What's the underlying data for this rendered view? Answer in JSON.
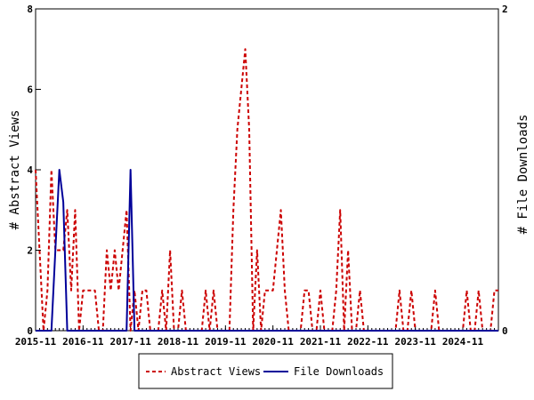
{
  "chart_data": {
    "type": "line",
    "ylabel_left": "# Abstract Views",
    "ylabel_right": "# File Downloads",
    "x_tick_labels": [
      "2015-11",
      "2016-11",
      "2017-11",
      "2018-11",
      "2019-11",
      "2020-11",
      "2021-11",
      "2022-11",
      "2023-11",
      "2024-11"
    ],
    "y_left_ticks": [
      "0",
      "2",
      "4",
      "6",
      "8"
    ],
    "y_right_ticks": [
      "0",
      "2"
    ],
    "ylim_left": [
      0,
      8
    ],
    "ylim_right": [
      0,
      2
    ],
    "x_start": "2015-11",
    "x_end": "2025-08",
    "grid": false,
    "legend_position": "bottom-center",
    "series": [
      {
        "name": "Abstract Views",
        "axis": "left",
        "color": "#cc0000",
        "style": "dashed",
        "points": [
          [
            "2015-11",
            4
          ],
          [
            "2015-12",
            2
          ],
          [
            "2016-01",
            0
          ],
          [
            "2016-02",
            1
          ],
          [
            "2016-03",
            4
          ],
          [
            "2016-04",
            2
          ],
          [
            "2016-05",
            2
          ],
          [
            "2016-06",
            2
          ],
          [
            "2016-07",
            3
          ],
          [
            "2016-08",
            1
          ],
          [
            "2016-09",
            3
          ],
          [
            "2016-10",
            0
          ],
          [
            "2016-11",
            1
          ],
          [
            "2016-12",
            1
          ],
          [
            "2017-01",
            1
          ],
          [
            "2017-02",
            1
          ],
          [
            "2017-03",
            0
          ],
          [
            "2017-04",
            0
          ],
          [
            "2017-05",
            2
          ],
          [
            "2017-06",
            1
          ],
          [
            "2017-07",
            2
          ],
          [
            "2017-08",
            1
          ],
          [
            "2017-09",
            2
          ],
          [
            "2017-10",
            3
          ],
          [
            "2017-11",
            0
          ],
          [
            "2017-12",
            1
          ],
          [
            "2018-01",
            0
          ],
          [
            "2018-02",
            1
          ],
          [
            "2018-03",
            1
          ],
          [
            "2018-04",
            0
          ],
          [
            "2018-05",
            0
          ],
          [
            "2018-06",
            0
          ],
          [
            "2018-07",
            1
          ],
          [
            "2018-08",
            0
          ],
          [
            "2018-09",
            2
          ],
          [
            "2018-10",
            0
          ],
          [
            "2018-11",
            0
          ],
          [
            "2018-12",
            1
          ],
          [
            "2019-01",
            0
          ],
          [
            "2019-02",
            0
          ],
          [
            "2019-03",
            0
          ],
          [
            "2019-04",
            0
          ],
          [
            "2019-05",
            0
          ],
          [
            "2019-06",
            1
          ],
          [
            "2019-07",
            0
          ],
          [
            "2019-08",
            1
          ],
          [
            "2019-09",
            0
          ],
          [
            "2019-10",
            0
          ],
          [
            "2019-11",
            0
          ],
          [
            "2019-12",
            0
          ],
          [
            "2020-01",
            3
          ],
          [
            "2020-02",
            5
          ],
          [
            "2020-03",
            6
          ],
          [
            "2020-04",
            7
          ],
          [
            "2020-05",
            5
          ],
          [
            "2020-06",
            0
          ],
          [
            "2020-07",
            2
          ],
          [
            "2020-08",
            0
          ],
          [
            "2020-09",
            1
          ],
          [
            "2020-10",
            1
          ],
          [
            "2020-11",
            1
          ],
          [
            "2020-12",
            2
          ],
          [
            "2021-01",
            3
          ],
          [
            "2021-02",
            1
          ],
          [
            "2021-03",
            0
          ],
          [
            "2021-04",
            0
          ],
          [
            "2021-05",
            0
          ],
          [
            "2021-06",
            0
          ],
          [
            "2021-07",
            1
          ],
          [
            "2021-08",
            1
          ],
          [
            "2021-09",
            0
          ],
          [
            "2021-10",
            0
          ],
          [
            "2021-11",
            1
          ],
          [
            "2021-12",
            0
          ],
          [
            "2022-01",
            0
          ],
          [
            "2022-02",
            0
          ],
          [
            "2022-03",
            1
          ],
          [
            "2022-04",
            3
          ],
          [
            "2022-05",
            0
          ],
          [
            "2022-06",
            2
          ],
          [
            "2022-07",
            0
          ],
          [
            "2022-08",
            0
          ],
          [
            "2022-09",
            1
          ],
          [
            "2022-10",
            0
          ],
          [
            "2022-11",
            0
          ],
          [
            "2023-01",
            0
          ],
          [
            "2023-05",
            0
          ],
          [
            "2023-06",
            0
          ],
          [
            "2023-07",
            1
          ],
          [
            "2023-08",
            0
          ],
          [
            "2023-09",
            0
          ],
          [
            "2023-10",
            1
          ],
          [
            "2023-11",
            0
          ],
          [
            "2023-12",
            0
          ],
          [
            "2024-01",
            0
          ],
          [
            "2024-03",
            0
          ],
          [
            "2024-04",
            1
          ],
          [
            "2024-05",
            0
          ],
          [
            "2024-11",
            0
          ],
          [
            "2024-12",
            1
          ],
          [
            "2025-01",
            0
          ],
          [
            "2025-02",
            0
          ],
          [
            "2025-03",
            1
          ],
          [
            "2025-04",
            0
          ],
          [
            "2025-05",
            0
          ],
          [
            "2025-06",
            0
          ],
          [
            "2025-07",
            1
          ],
          [
            "2025-08",
            1
          ]
        ]
      },
      {
        "name": "File Downloads",
        "axis": "right",
        "color": "#000099",
        "style": "solid",
        "points": [
          [
            "2015-11",
            0
          ],
          [
            "2016-03",
            0
          ],
          [
            "2016-04",
            0.5
          ],
          [
            "2016-05",
            1
          ],
          [
            "2016-06",
            0.8
          ],
          [
            "2016-07",
            0
          ],
          [
            "2016-08",
            0
          ],
          [
            "2017-09",
            0
          ],
          [
            "2017-10",
            0
          ],
          [
            "2017-11",
            1
          ],
          [
            "2017-12",
            0
          ],
          [
            "2018-01",
            0
          ],
          [
            "2025-08",
            0
          ]
        ]
      }
    ]
  }
}
